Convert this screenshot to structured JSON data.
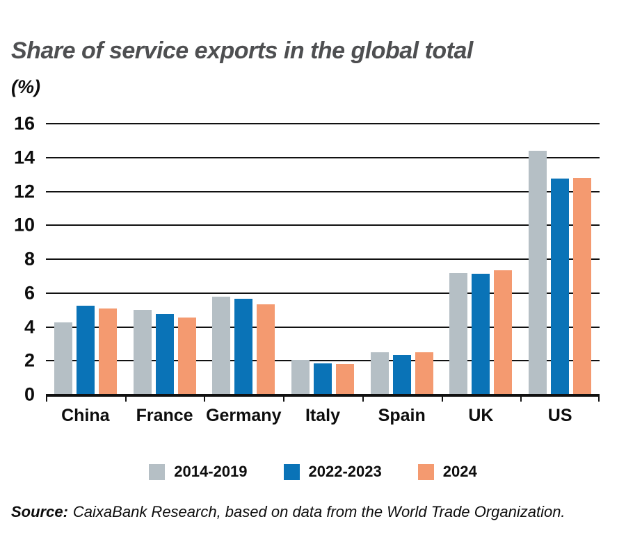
{
  "title": "Share of service exports in the global total",
  "subtitle": "(%)",
  "source": {
    "label": "Source:",
    "text": "CaixaBank Research, based on data from the World Trade Organization."
  },
  "chart_data": {
    "type": "bar",
    "title": "Share of service exports in the global total",
    "ylabel": "%",
    "categories": [
      "China",
      "France",
      "Germany",
      "Italy",
      "Spain",
      "UK",
      "US"
    ],
    "series": [
      {
        "name": "2014-2019",
        "color": "#b5bfc5",
        "values": [
          4.25,
          5.0,
          5.8,
          2.05,
          2.5,
          7.2,
          14.4
        ]
      },
      {
        "name": "2022-2023",
        "color": "#0a73b7",
        "values": [
          5.25,
          4.75,
          5.65,
          1.85,
          2.35,
          7.15,
          12.75
        ]
      },
      {
        "name": "2024",
        "color": "#f49a70",
        "values": [
          5.1,
          4.55,
          5.35,
          1.8,
          2.5,
          7.35,
          12.8
        ]
      }
    ],
    "ylim": [
      0,
      16
    ],
    "yticks": [
      0,
      2,
      4,
      6,
      8,
      10,
      12,
      14,
      16
    ],
    "grid": true,
    "grid_color": "#111111",
    "legend_position": "bottom"
  }
}
